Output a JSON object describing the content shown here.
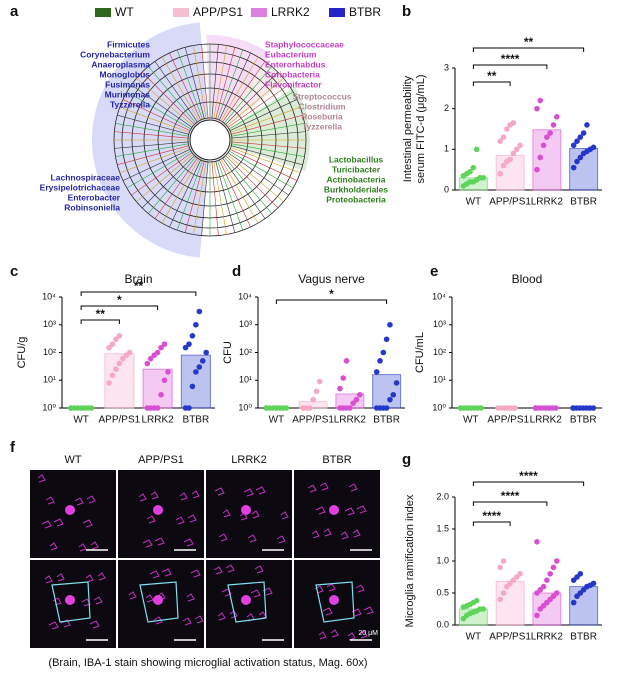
{
  "cladogram": {
    "panel": "a",
    "legend": [
      {
        "name": "WT",
        "color": "#2d6a1e"
      },
      {
        "name": "APP/PS1",
        "color": "#f5bfcf"
      },
      {
        "name": "LRRK2",
        "color": "#dd7fe0"
      },
      {
        "name": "BTBR",
        "color": "#2424c8"
      }
    ],
    "groups": [
      {
        "color": "#2424a8",
        "taxa": [
          "Firmicutes",
          "Corynebacterium",
          "Anaeroplasma",
          "Monoglobus",
          "Fusimonas",
          "Murimonas",
          "Tyzzerella"
        ]
      },
      {
        "color": "#2424a8",
        "taxa": [
          "Lachnospiraceae",
          "Erysipelotrichaceae",
          "Enterobacter",
          "Robinsoniella"
        ]
      },
      {
        "color": "#c23fc2",
        "taxa": [
          "Staphylococcaceae",
          "Eubacterium",
          "Enterorhabdus",
          "Coriobacteria",
          "Flavonifractor"
        ]
      },
      {
        "color": "#b08590",
        "taxa": [
          "Streptococcus",
          "Clostridium",
          "Roseburia",
          "Tyzzerella"
        ]
      },
      {
        "color": "#2f7d1e",
        "taxa": [
          "Lactobacillus",
          "Turicibacter",
          "Actinobacteria",
          "Burkholderiales",
          "Proteobacteria"
        ]
      }
    ]
  },
  "micrographs": {
    "panel": "f",
    "columns": [
      "WT",
      "APP/PS1",
      "LRRK2",
      "BTBR"
    ],
    "scale_bar": "20 μM",
    "caption": "(Brain, IBA-1 stain showing microglial activation status, Mag. 60x)"
  },
  "chart_data": [
    {
      "type": "bar",
      "panel": "b",
      "ylabel": [
        "Intestinal permeability",
        "serum FITC-d (μg/mL)"
      ],
      "categories": [
        "WT",
        "APP/PS1",
        "LRRK2",
        "BTBR"
      ],
      "colors": [
        "#5fd35a",
        "#f5a9c6",
        "#d94fd3",
        "#2638c9"
      ],
      "values": [
        0.3,
        0.85,
        1.48,
        1.02
      ],
      "points": [
        [
          0.1,
          0.15,
          0.2,
          0.2,
          0.25,
          0.3,
          0.3,
          0.35,
          0.4,
          0.45,
          0.55,
          1.0
        ],
        [
          0.4,
          0.6,
          0.7,
          0.75,
          0.9,
          1.0,
          1.1,
          1.2,
          1.3,
          1.5,
          1.6,
          1.65
        ],
        [
          0.5,
          0.8,
          1.1,
          1.3,
          1.4,
          1.6,
          1.8,
          2.0,
          2.2
        ],
        [
          0.55,
          0.7,
          0.8,
          0.9,
          0.95,
          1.0,
          1.05,
          1.1,
          1.2,
          1.3,
          1.4,
          1.6
        ]
      ],
      "ylim": [
        0,
        3
      ],
      "yticks": [
        0,
        1,
        2,
        3
      ],
      "comparisons": [
        {
          "from": "WT",
          "to": "APP/PS1",
          "label": "**"
        },
        {
          "from": "WT",
          "to": "LRRK2",
          "label": "****"
        },
        {
          "from": "WT",
          "to": "BTBR",
          "label": "**"
        }
      ]
    },
    {
      "type": "bar",
      "panel": "c",
      "title": "Brain",
      "ylabel": [
        "CFU/g"
      ],
      "log": true,
      "categories": [
        "WT",
        "APP/PS1",
        "LRRK2",
        "BTBR"
      ],
      "colors": [
        "#5fd35a",
        "#f5a9c6",
        "#d94fd3",
        "#2638c9"
      ],
      "values": [
        1,
        90,
        25,
        80
      ],
      "points": [
        [
          1,
          1,
          1,
          1,
          1,
          1,
          1,
          1
        ],
        [
          8,
          15,
          25,
          40,
          60,
          80,
          100,
          150,
          200,
          300,
          400
        ],
        [
          1,
          1,
          1,
          1,
          3,
          10,
          20,
          40,
          60,
          80,
          100,
          150,
          200
        ],
        [
          1,
          1,
          6,
          20,
          30,
          50,
          100,
          150,
          200,
          400,
          1000,
          3000
        ]
      ],
      "ylim": [
        1,
        10000
      ],
      "yticks": [
        {
          "value": 1,
          "label": "10⁰"
        },
        {
          "value": 10,
          "label": "10¹"
        },
        {
          "value": 100,
          "label": "10²"
        },
        {
          "value": 1000,
          "label": "10³"
        },
        {
          "value": 10000,
          "label": "10⁴"
        }
      ],
      "comparisons": [
        {
          "from": "WT",
          "to": "APP/PS1",
          "label": "**"
        },
        {
          "from": "WT",
          "to": "LRRK2",
          "label": "*"
        },
        {
          "from": "WT",
          "to": "BTBR",
          "label": "**"
        }
      ]
    },
    {
      "type": "bar",
      "panel": "d",
      "title": "Vagus nerve",
      "ylabel": [
        "CFU"
      ],
      "log": true,
      "categories": [
        "WT",
        "APP/PS1",
        "LRRK2",
        "BTBR"
      ],
      "colors": [
        "#5fd35a",
        "#f5a9c6",
        "#d94fd3",
        "#2638c9"
      ],
      "values": [
        1,
        1.7,
        3.2,
        16
      ],
      "points": [
        [
          1,
          1,
          1,
          1,
          1,
          1,
          1,
          1
        ],
        [
          1,
          1,
          1,
          2,
          4,
          9
        ],
        [
          1,
          1,
          1,
          1,
          1.5,
          2,
          3,
          5,
          12,
          50
        ],
        [
          1,
          1,
          1,
          1,
          2,
          3,
          8,
          20,
          50,
          100,
          300,
          1000
        ]
      ],
      "ylim": [
        1,
        10000
      ],
      "yticks": [
        {
          "value": 1,
          "label": "10⁰"
        },
        {
          "value": 10,
          "label": "10¹"
        },
        {
          "value": 100,
          "label": "10²"
        },
        {
          "value": 1000,
          "label": "10³"
        },
        {
          "value": 10000,
          "label": "10⁴"
        }
      ],
      "comparisons": [
        {
          "from": "WT",
          "to": "BTBR",
          "label": "*"
        }
      ]
    },
    {
      "type": "bar",
      "panel": "e",
      "title": "Blood",
      "ylabel": [
        "CFU/mL"
      ],
      "log": true,
      "categories": [
        "WT",
        "APP/PS1",
        "LRRK2",
        "BTBR"
      ],
      "colors": [
        "#5fd35a",
        "#f5a9c6",
        "#d94fd3",
        "#2638c9"
      ],
      "values": [
        1,
        1,
        1,
        1
      ],
      "points": [
        [
          1,
          1,
          1,
          1,
          1,
          1,
          1,
          1
        ],
        [
          1,
          1,
          1,
          1,
          1,
          1
        ],
        [
          1,
          1,
          1,
          1,
          1,
          1,
          1,
          1
        ],
        [
          1,
          1,
          1,
          1,
          1,
          1,
          1,
          1
        ]
      ],
      "ylim": [
        1,
        10000
      ],
      "yticks": [
        {
          "value": 1,
          "label": "10⁰"
        },
        {
          "value": 10,
          "label": "10¹"
        },
        {
          "value": 100,
          "label": "10²"
        },
        {
          "value": 1000,
          "label": "10³"
        },
        {
          "value": 10000,
          "label": "10⁴"
        }
      ]
    },
    {
      "type": "bar",
      "panel": "g",
      "ylabel": [
        "Microglia ramification index"
      ],
      "categories": [
        "WT",
        "APP/PS1",
        "LRRK2",
        "BTBR"
      ],
      "colors": [
        "#5fd35a",
        "#f5a9c6",
        "#d94fd3",
        "#2638c9"
      ],
      "values": [
        0.25,
        0.68,
        0.5,
        0.6
      ],
      "points": [
        [
          0.1,
          0.15,
          0.18,
          0.2,
          0.22,
          0.25,
          0.25,
          0.28,
          0.3,
          0.32,
          0.35,
          0.38
        ],
        [
          0.4,
          0.5,
          0.6,
          0.65,
          0.7,
          0.75,
          0.8,
          0.9,
          1.0
        ],
        [
          0.15,
          0.25,
          0.3,
          0.35,
          0.4,
          0.45,
          0.5,
          0.5,
          0.55,
          0.6,
          0.7,
          0.8,
          0.9,
          1.0,
          1.3
        ],
        [
          0.35,
          0.45,
          0.5,
          0.55,
          0.6,
          0.62,
          0.65,
          0.7,
          0.75,
          0.8
        ]
      ],
      "ylim": [
        0,
        2
      ],
      "yticks": [
        {
          "value": 0,
          "label": "0.0"
        },
        0.5,
        {
          "value": 1,
          "label": "1.0"
        },
        1.5,
        {
          "value": 2,
          "label": "2.0"
        }
      ],
      "comparisons": [
        {
          "from": "WT",
          "to": "APP/PS1",
          "label": "****"
        },
        {
          "from": "WT",
          "to": "LRRK2",
          "label": "****"
        },
        {
          "from": "WT",
          "to": "BTBR",
          "label": "****"
        }
      ]
    }
  ]
}
